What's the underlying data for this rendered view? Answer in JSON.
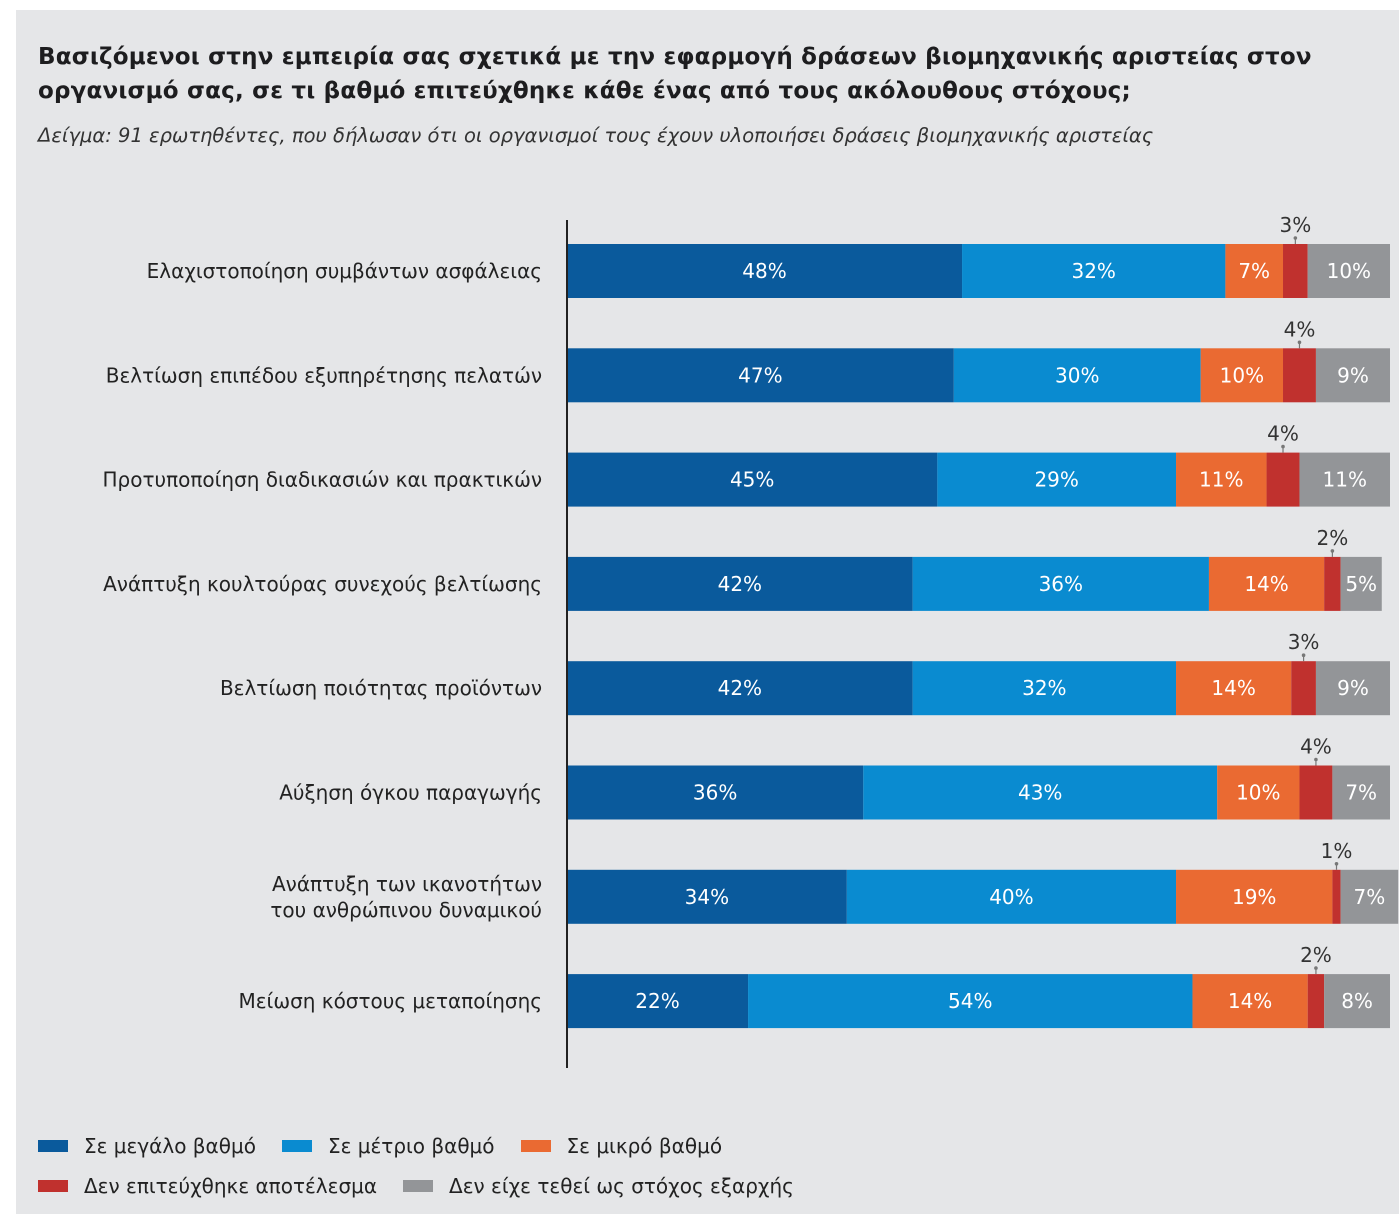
{
  "title": "Βασιζόμενοι στην εμπειρία σας σχετικά με την εφαρμογή δράσεων βιομηχανικής αριστείας στον οργανισμό σας, σε τι βαθμό επιτεύχθηκε κάθε ένας από τους ακόλουθους στόχους;",
  "subtitle": "Δείγμα: 91 ερωτηθέντες, που δήλωσαν ότι οι οργανισμοί τους έχουν υλοποιήσει δράσεις βιομηχανικής αριστείας",
  "chart_data": {
    "type": "bar",
    "orientation": "horizontal",
    "stacked": true,
    "unit": "%",
    "xlim": [
      0,
      100
    ],
    "legend_position": "bottom",
    "categories": [
      [
        "Ελαχιστοποίηση συμβάντων ασφάλειας"
      ],
      [
        "Βελτίωση επιπέδου εξυπηρέτησης πελατών"
      ],
      [
        "Προτυποποίηση διαδικασιών και πρακτικών"
      ],
      [
        "Ανάπτυξη κουλτούρας συνεχούς βελτίωσης"
      ],
      [
        "Βελτίωση ποιότητας προϊόντων"
      ],
      [
        "Αύξηση όγκου παραγωγής"
      ],
      [
        "Ανάπτυξη των ικανοτήτων",
        "του ανθρώπινου δυναμικού"
      ],
      [
        "Μείωση κόστους μεταποίησης"
      ]
    ],
    "series": [
      {
        "name": "Σε μεγάλο βαθμό",
        "color": "#0a5a9c",
        "values": [
          48,
          47,
          45,
          42,
          42,
          36,
          34,
          22
        ]
      },
      {
        "name": "Σε μέτριο βαθμό",
        "color": "#0a8bd0",
        "values": [
          32,
          30,
          29,
          36,
          32,
          43,
          40,
          54
        ]
      },
      {
        "name": "Σε μικρό βαθμό",
        "color": "#ea6a32",
        "values": [
          7,
          10,
          11,
          14,
          14,
          10,
          19,
          14
        ]
      },
      {
        "name": "Δεν επιτεύχθηκε αποτέλεσμα",
        "color": "#c0312e",
        "values": [
          3,
          4,
          4,
          2,
          3,
          4,
          1,
          2
        ]
      },
      {
        "name": "Δεν είχε τεθεί ως στόχος εξαρχής",
        "color": "#939598",
        "values": [
          10,
          9,
          11,
          5,
          9,
          7,
          7,
          8
        ]
      }
    ]
  },
  "legend": {
    "rows": [
      [
        {
          "label": "Σε μεγάλο βαθμό",
          "color": "#0a5a9c"
        },
        {
          "label": "Σε μέτριο βαθμό",
          "color": "#0a8bd0"
        },
        {
          "label": "Σε μικρό βαθμό",
          "color": "#ea6a32"
        }
      ],
      [
        {
          "label": "Δεν επιτεύχθηκε αποτέλεσμα",
          "color": "#c0312e"
        },
        {
          "label": "Δεν είχε τεθεί ως στόχος εξαρχής",
          "color": "#939598"
        }
      ]
    ]
  }
}
